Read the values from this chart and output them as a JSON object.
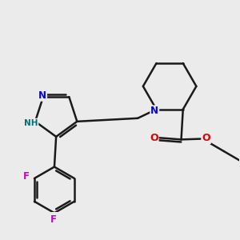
{
  "bg_color": "#ebebeb",
  "bond_color": "#1a1a1a",
  "bond_width": 1.8,
  "atom_colors": {
    "N": "#0000ee",
    "NH": "#007070",
    "O": "#dd0000",
    "F": "#cc00cc",
    "C": "#1a1a1a"
  }
}
